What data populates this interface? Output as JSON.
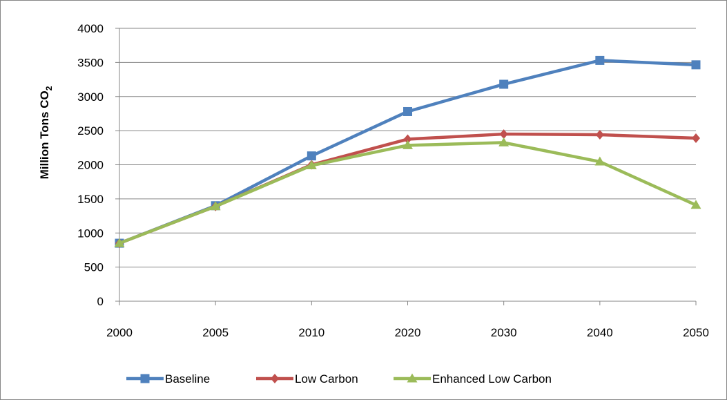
{
  "chart_data": {
    "type": "line",
    "title": "",
    "xlabel": "",
    "ylabel": {
      "text": "Million Tons CO",
      "subscript": "2"
    },
    "categories": [
      "2000",
      "2005",
      "2010",
      "2020",
      "2030",
      "2040",
      "2050"
    ],
    "ylim": [
      0,
      4000
    ],
    "yticks": [
      "0",
      "500",
      "1000",
      "1500",
      "2000",
      "2500",
      "3000",
      "3500",
      "4000"
    ],
    "grid": true,
    "legend_position": "bottom",
    "series": [
      {
        "name": "Baseline",
        "color": "#4F81BD",
        "marker": "square",
        "values": [
          850,
          1400,
          2130,
          2780,
          3180,
          3530,
          3465
        ]
      },
      {
        "name": "Low Carbon",
        "color": "#C0504D",
        "marker": "diamond",
        "values": [
          850,
          1390,
          2000,
          2375,
          2450,
          2440,
          2390
        ]
      },
      {
        "name": "Enhanced Low Carbon",
        "color": "#9BBB59",
        "marker": "triangle",
        "values": [
          850,
          1390,
          1990,
          2285,
          2325,
          2045,
          1410
        ]
      }
    ]
  }
}
